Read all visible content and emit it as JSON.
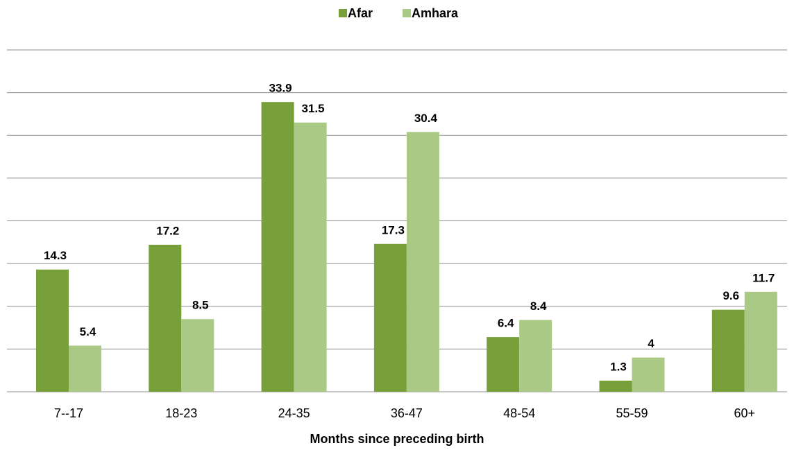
{
  "chart_data": {
    "type": "bar",
    "xlabel": "Months since preceding birth",
    "categories": [
      "7--17",
      "18-23",
      "24-35",
      "36-47",
      "48-54",
      "55-59",
      "60+"
    ],
    "series": [
      {
        "name": "Afar",
        "color": "#77a03a",
        "values": [
          14.3,
          17.2,
          33.9,
          17.3,
          6.4,
          1.3,
          9.6
        ]
      },
      {
        "name": "Amhara",
        "color": "#a9c985",
        "values": [
          5.4,
          8.5,
          31.5,
          30.4,
          8.4,
          4,
          11.7
        ]
      }
    ],
    "ylim": [
      0,
      40
    ],
    "yticks": [
      0,
      5,
      10,
      15,
      20,
      25,
      30,
      35,
      40
    ],
    "grid": true,
    "legend": "top"
  }
}
